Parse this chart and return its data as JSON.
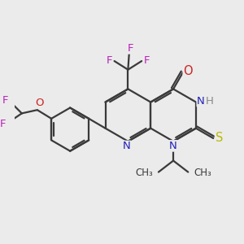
{
  "bg_color": "#ebebeb",
  "bond_color": "#3a3a3a",
  "bond_width": 1.6,
  "atom_colors": {
    "C": "#3a3a3a",
    "N": "#2222bb",
    "O": "#cc2222",
    "F": "#bb22bb",
    "S": "#bbbb00",
    "H": "#888888"
  },
  "font_size": 9.5,
  "fig_size": [
    3.0,
    3.0
  ],
  "dpi": 100
}
